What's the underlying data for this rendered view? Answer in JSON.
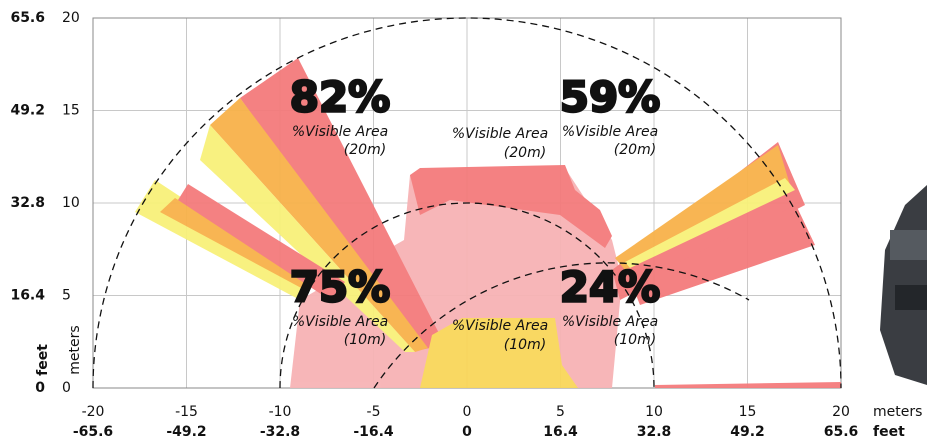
{
  "chart_data": {
    "type": "visibility-map",
    "xlim": [
      -20,
      20
    ],
    "xticks": [
      -20,
      -15,
      -10,
      -5,
      0,
      5,
      10,
      15,
      20
    ],
    "xlabel": "meters",
    "x2lim": [
      -65.6,
      65.6
    ],
    "x2ticks": [
      -65.6,
      -49.2,
      -32.8,
      -16.4,
      0,
      16.4,
      32.8,
      49.2,
      65.6
    ],
    "x2label": "feet",
    "ylim": [
      0,
      20
    ],
    "yticks": [
      0,
      5,
      10,
      15,
      20
    ],
    "ylabel": "meters",
    "y2lim": [
      0,
      65.6
    ],
    "y2ticks": [
      0,
      16.4,
      32.8,
      49.2,
      65.6
    ],
    "y2label": "feet",
    "grid": true,
    "quadrants": [
      {
        "percent": "82%",
        "color": "#f6e24a",
        "caption": "%Visible Area",
        "range": "(20m)"
      },
      {
        "percent": "59%",
        "color": "#f0433f",
        "caption": "%Visible Area",
        "range": "(20m)"
      },
      {
        "percent": "75%",
        "color": "#f6e24a",
        "caption": "%Visible Area",
        "range": "(10m)"
      },
      {
        "percent": "24%",
        "color": "#f0433f",
        "caption": "%Visible Area",
        "range": "(10m)"
      }
    ],
    "center_labels": [
      {
        "caption": "%Visible Area",
        "range": "(20m)"
      },
      {
        "caption": "%Visible Area",
        "range": "(10m)"
      }
    ]
  }
}
